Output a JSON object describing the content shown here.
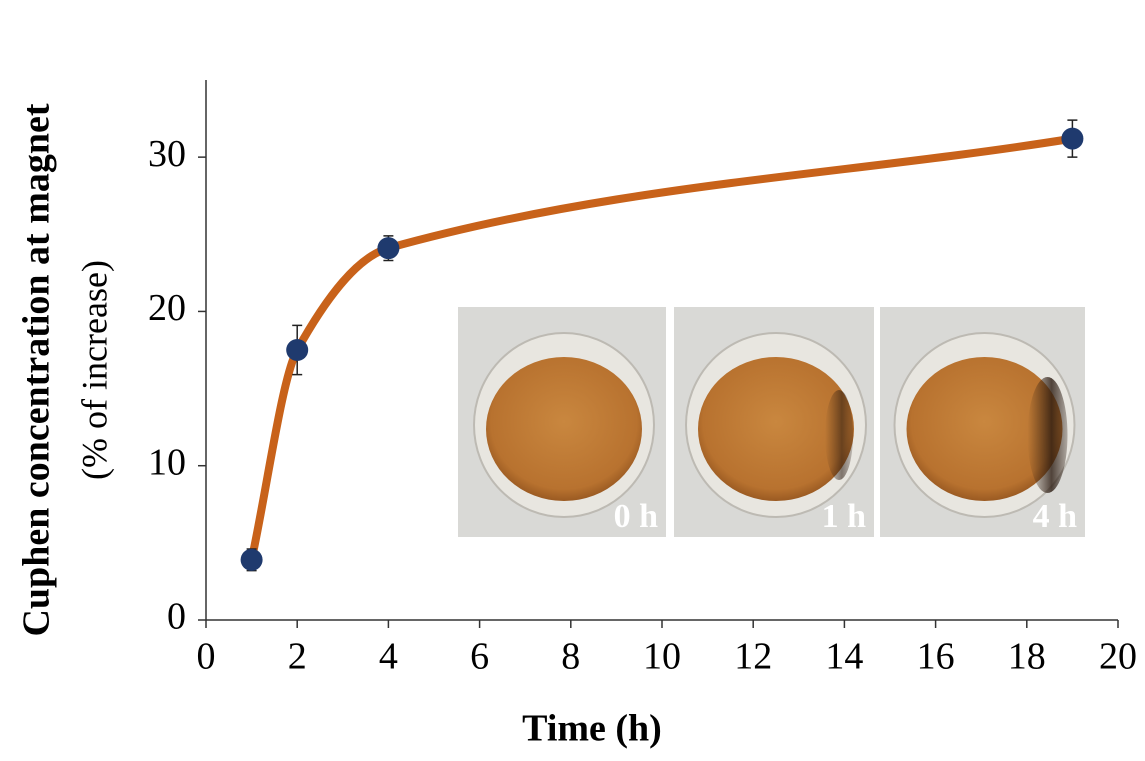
{
  "chart_data": {
    "type": "line",
    "x_label": "Time (h)",
    "y_label": "Cuphen concentration at magnet",
    "y_label_sub": "(% of increase)",
    "series": [
      {
        "color": "#c8621a",
        "marker_color": "#1f3a6e",
        "x": [
          1,
          2,
          4,
          19
        ],
        "values": [
          3.9,
          17.5,
          24.1,
          31.2
        ],
        "errors": [
          0.7,
          1.6,
          0.8,
          1.2
        ]
      }
    ],
    "xlim": [
      0,
      20
    ],
    "xticks": [
      0,
      2,
      4,
      6,
      8,
      10,
      12,
      14,
      16,
      18,
      20
    ],
    "ylim": [
      0,
      35
    ],
    "yticks": [
      0,
      10,
      20,
      30
    ],
    "grid": false,
    "inset_labels": [
      "0 h",
      "1 h",
      "4 h"
    ]
  }
}
